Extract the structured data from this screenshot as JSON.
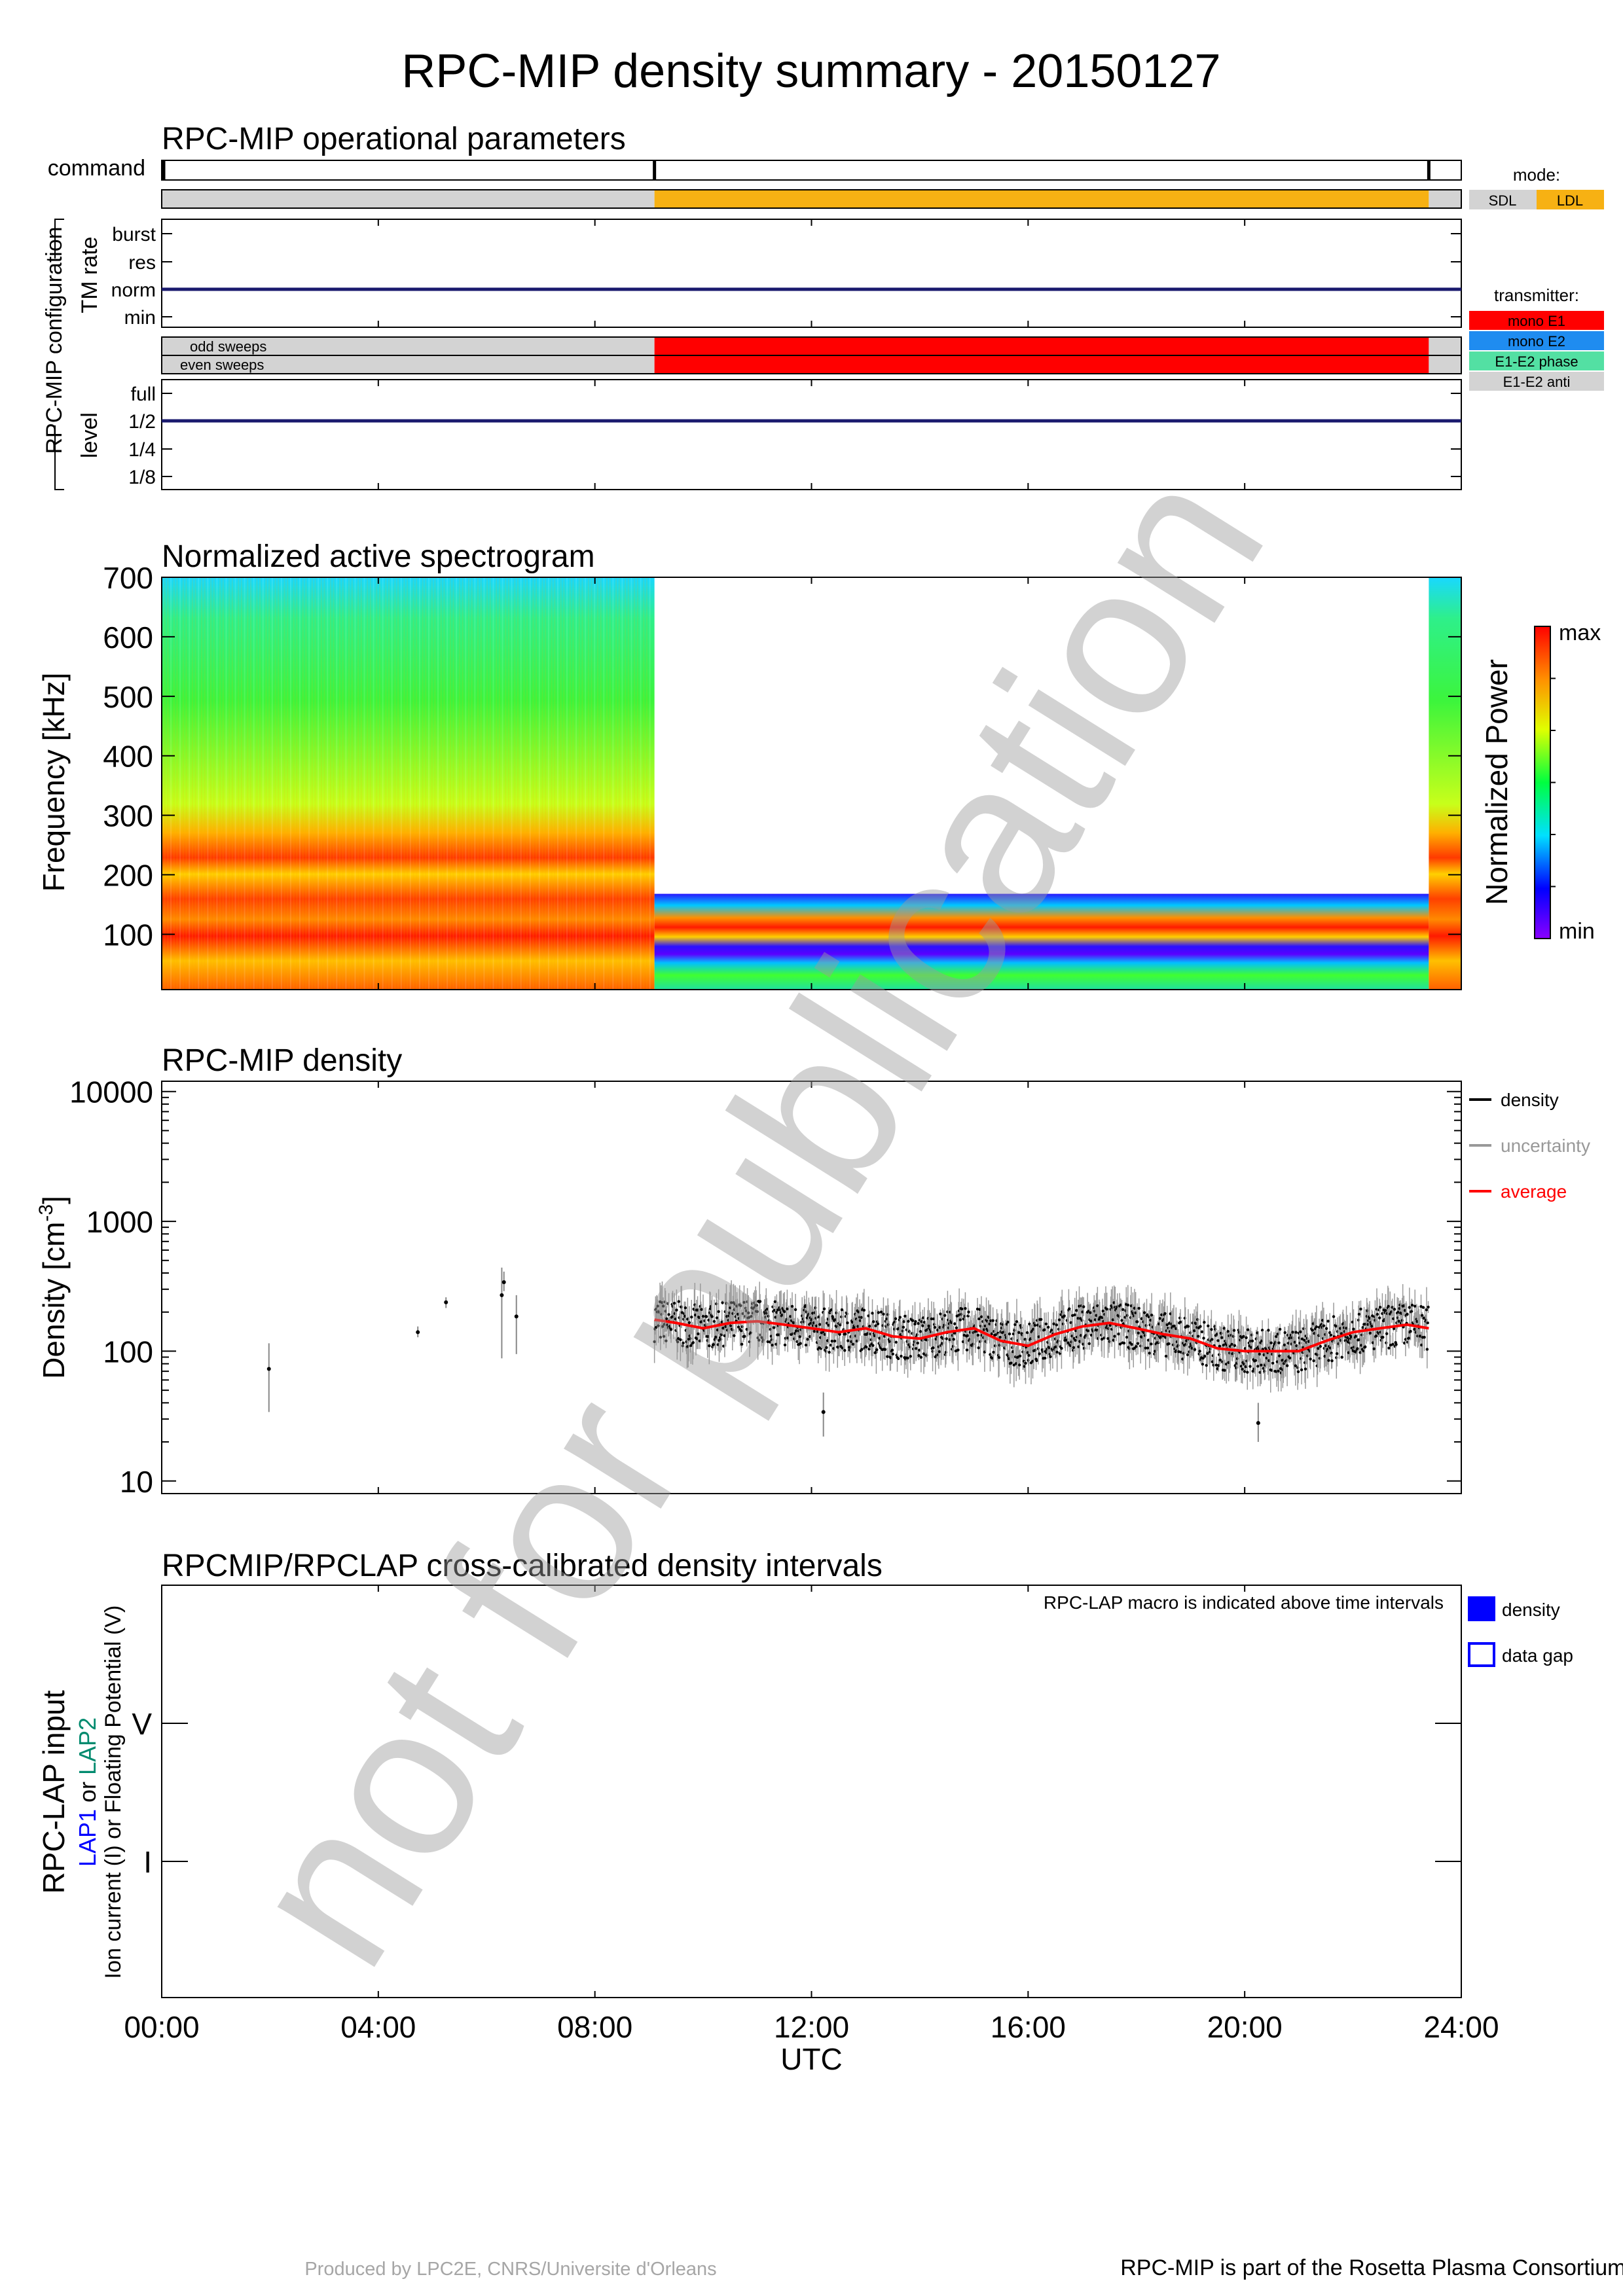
{
  "title": "RPC-MIP density summary - 20150127",
  "footer": {
    "left": "Produced by LPC2E, CNRS/Universite d'Orleans",
    "right": "RPC-MIP is part of the Rosetta Plasma Consortium (RPC) of the ESA Rosetta mission"
  },
  "watermark": "not for publication",
  "time_axis": {
    "ticks": [
      "00:00",
      "04:00",
      "08:00",
      "12:00",
      "16:00",
      "20:00",
      "24:00"
    ],
    "label": "UTC"
  },
  "operational": {
    "title": "RPC-MIP operational parameters",
    "command_label": "command",
    "config_label": "RPC-MIP configuration",
    "tm_rate_label": "TM rate",
    "tm_levels": [
      "burst",
      "res",
      "norm",
      "min"
    ],
    "sweeps": [
      "odd sweeps",
      "even sweeps"
    ],
    "level_label": "level",
    "levels": [
      "full",
      "1/2",
      "1/4",
      "1/8"
    ],
    "mode_legend_title": "mode:",
    "modes": [
      {
        "label": "SDL",
        "color": "#d3d3d3"
      },
      {
        "label": "LDL",
        "color": "#f7b113"
      }
    ],
    "transmitter_title": "transmitter:",
    "transmitters": [
      {
        "label": "mono E1",
        "color": "#ff0000"
      },
      {
        "label": "mono E2",
        "color": "#1f8cf0"
      },
      {
        "label": "E1-E2 phase",
        "color": "#53e0a3"
      },
      {
        "label": "E1-E2 anti",
        "color": "#d3d3d3"
      }
    ]
  },
  "chart_data": [
    {
      "type": "timeline",
      "title": "RPC-MIP operational parameters",
      "command_marks_hours": [
        0,
        9.1,
        23.4
      ],
      "mode_intervals": [
        {
          "start": 0,
          "end": 9.1,
          "mode": "SDL"
        },
        {
          "start": 9.1,
          "end": 23.4,
          "mode": "LDL"
        },
        {
          "start": 23.4,
          "end": 24,
          "mode": "SDL"
        }
      ],
      "tm_rate": "norm",
      "transmitter_intervals": [
        {
          "start": 0,
          "end": 9.1,
          "tx": "E1-E2 anti"
        },
        {
          "start": 9.1,
          "end": 23.4,
          "tx": "mono E1"
        },
        {
          "start": 23.4,
          "end": 24,
          "tx": "E1-E2 anti"
        }
      ],
      "level": "1/2"
    },
    {
      "type": "heatmap",
      "title": "Normalized active spectrogram",
      "ylabel": "Frequency [kHz]",
      "yticks": [
        100,
        200,
        300,
        400,
        500,
        600,
        700
      ],
      "ylim": [
        7,
        700
      ],
      "xlim": [
        0,
        24
      ],
      "colorbar": {
        "label": "Normalized Power",
        "max": "max",
        "min": "min"
      },
      "segments": [
        {
          "start": 0,
          "end": 9.1,
          "fmax": 700
        },
        {
          "start": 9.1,
          "end": 23.4,
          "fmax": 168
        },
        {
          "start": 23.4,
          "end": 24,
          "fmax": 700
        }
      ]
    },
    {
      "type": "scatter",
      "title": "RPC-MIP density",
      "ylabel": "Density [cm",
      "ylabel_sup": "-3",
      "ylabel_end": "]",
      "yscale": "log",
      "ylim": [
        8,
        12000
      ],
      "yticks": [
        "10000",
        "1000",
        "100",
        "10"
      ],
      "legend": [
        {
          "label": "density",
          "color": "#000000"
        },
        {
          "label": "uncertainty",
          "color": "#999999"
        },
        {
          "label": "average",
          "color": "#ff0000"
        }
      ],
      "sparse_points": [
        {
          "t": 1.98,
          "v": 73,
          "lo": 34,
          "hi": 115
        },
        {
          "t": 4.73,
          "v": 140,
          "lo": 128,
          "hi": 155
        },
        {
          "t": 5.25,
          "v": 238,
          "lo": 215,
          "hi": 260
        },
        {
          "t": 6.28,
          "v": 270,
          "lo": 88,
          "hi": 440
        },
        {
          "t": 6.32,
          "v": 340,
          "lo": 290,
          "hi": 410
        },
        {
          "t": 6.55,
          "v": 185,
          "lo": 95,
          "hi": 270
        },
        {
          "t": 12.22,
          "v": 34,
          "lo": 22,
          "hi": 48
        },
        {
          "t": 20.25,
          "v": 28,
          "lo": 20,
          "hi": 40
        }
      ],
      "dense_interval": {
        "start": 9.1,
        "end": 23.4
      },
      "average_curve": [
        {
          "t": 9.1,
          "v": 175
        },
        {
          "t": 9.5,
          "v": 165
        },
        {
          "t": 10.0,
          "v": 150
        },
        {
          "t": 10.5,
          "v": 165
        },
        {
          "t": 11.0,
          "v": 170
        },
        {
          "t": 11.5,
          "v": 160
        },
        {
          "t": 12.0,
          "v": 150
        },
        {
          "t": 12.5,
          "v": 140
        },
        {
          "t": 13.0,
          "v": 150
        },
        {
          "t": 13.5,
          "v": 130
        },
        {
          "t": 14.0,
          "v": 125
        },
        {
          "t": 14.5,
          "v": 140
        },
        {
          "t": 15.0,
          "v": 150
        },
        {
          "t": 15.5,
          "v": 120
        },
        {
          "t": 16.0,
          "v": 110
        },
        {
          "t": 16.5,
          "v": 135
        },
        {
          "t": 17.0,
          "v": 155
        },
        {
          "t": 17.5,
          "v": 165
        },
        {
          "t": 18.0,
          "v": 150
        },
        {
          "t": 18.5,
          "v": 135
        },
        {
          "t": 19.0,
          "v": 125
        },
        {
          "t": 19.5,
          "v": 105
        },
        {
          "t": 20.0,
          "v": 100
        },
        {
          "t": 20.5,
          "v": 100
        },
        {
          "t": 21.0,
          "v": 100
        },
        {
          "t": 21.5,
          "v": 120
        },
        {
          "t": 22.0,
          "v": 140
        },
        {
          "t": 22.5,
          "v": 150
        },
        {
          "t": 23.0,
          "v": 160
        },
        {
          "t": 23.4,
          "v": 150
        }
      ]
    },
    {
      "type": "timeline",
      "title": "RPCMIP/RPCLAP cross-calibrated density intervals",
      "annotation": "RPC-LAP macro is indicated above time intervals",
      "ylabel_main": "RPC-LAP input",
      "ylabel_lap1": "LAP1",
      "ylabel_or": " or ",
      "ylabel_lap2": "LAP2",
      "ylabel_sub": "Ion current (I) or Floating Potential (V)",
      "ytick_labels": [
        "V",
        "I"
      ],
      "legend": [
        {
          "label": "density",
          "style": "filled",
          "color": "#0000ff"
        },
        {
          "label": "data gap",
          "style": "outline",
          "color": "#0000ff"
        }
      ],
      "intervals": []
    }
  ]
}
